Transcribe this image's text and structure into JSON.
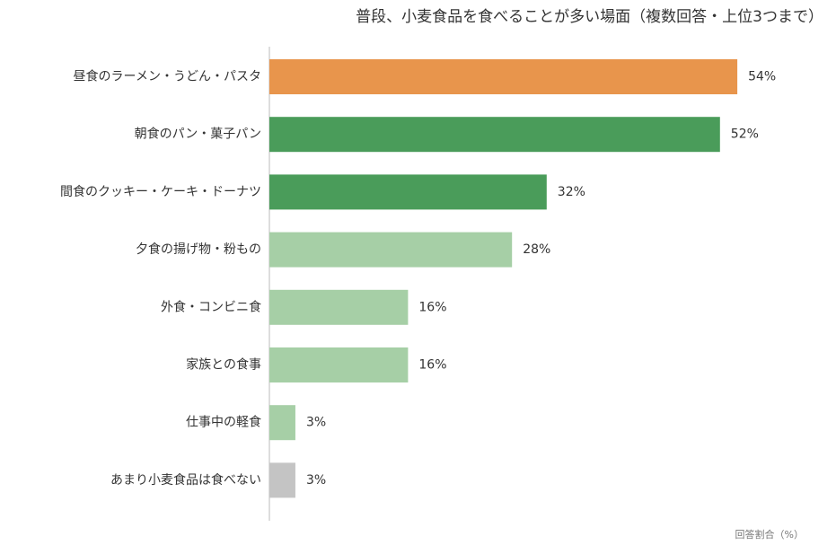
{
  "chart_data": {
    "type": "bar",
    "orientation": "horizontal",
    "title": "普段、小麦食品を食べることが多い場面（複数回答・上位3つまで）",
    "xlabel": "回答割合（%）",
    "ylabel": "",
    "xlim": [
      0,
      60
    ],
    "grid": false,
    "legend": "none",
    "categories": [
      "昼食のラーメン・うどん・パスタ",
      "朝食のパン・菓子パン",
      "間食のクッキー・ケーキ・ドーナツ",
      "夕食の揚げ物・粉もの",
      "外食・コンビニ食",
      "家族との食事",
      "仕事中の軽食",
      "あまり小麦食品は食べない"
    ],
    "values": [
      54,
      52,
      32,
      28,
      16,
      16,
      3,
      3
    ],
    "value_labels": [
      "54%",
      "52%",
      "32%",
      "28%",
      "16%",
      "16%",
      "3%",
      "3%"
    ],
    "bar_colors": [
      "#e8954c",
      "#4a9c5a",
      "#4a9c5a",
      "#a6cfa6",
      "#a6cfa6",
      "#a6cfa6",
      "#a6cfa6",
      "#c4c4c4"
    ]
  }
}
